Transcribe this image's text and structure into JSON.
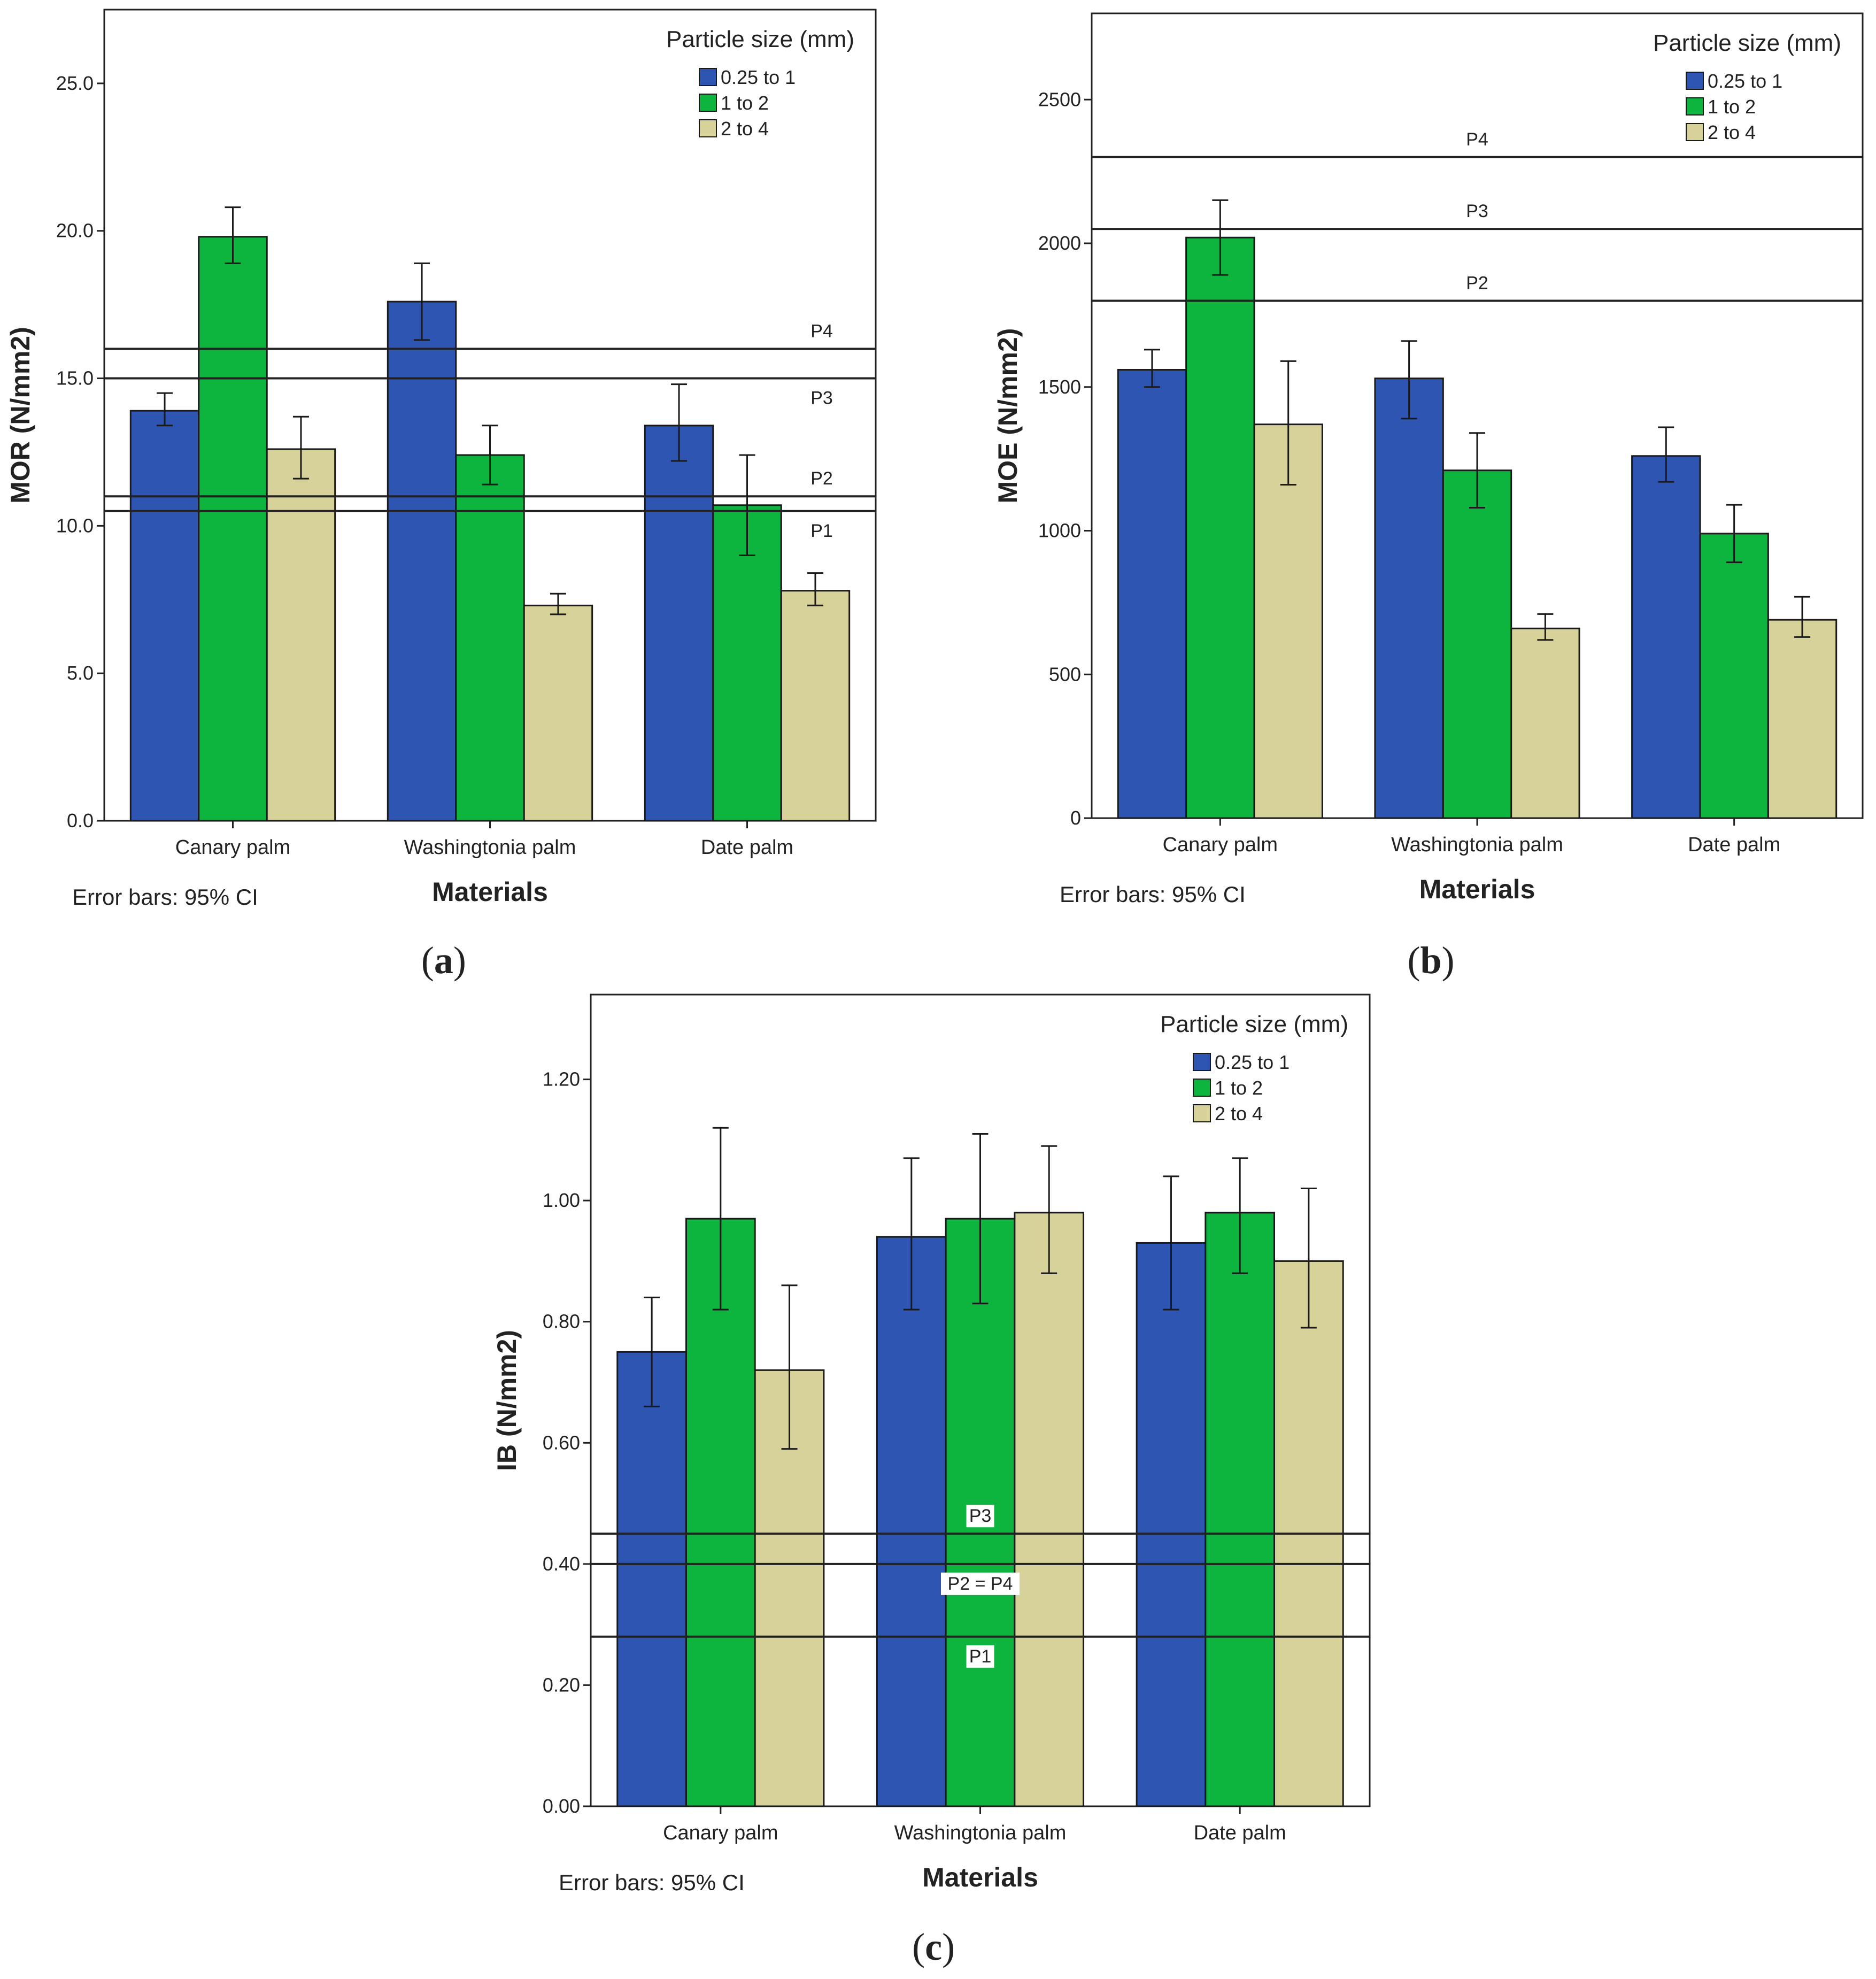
{
  "figure": {
    "error_note": "Error bars: 95% CI",
    "legend_title": "Particle size (mm)"
  },
  "chart_data": [
    {
      "panel": "(a)",
      "panel_letter": "a",
      "type": "bar",
      "ylabel": "MOR (N/mm2)",
      "xlabel": "Materials",
      "ylim": [
        0,
        27.5
      ],
      "yticks": [
        0,
        5,
        10,
        15,
        20,
        25
      ],
      "tick_decimals": 1,
      "categories": [
        "Canary palm",
        "Washingtonia palm",
        "Date palm"
      ],
      "series": [
        {
          "name": "0.25 to 1",
          "values": [
            13.9,
            17.6,
            13.4
          ],
          "ci_low": [
            13.4,
            16.3,
            12.2
          ],
          "ci_high": [
            14.5,
            18.9,
            14.8
          ]
        },
        {
          "name": "1 to 2",
          "values": [
            19.8,
            12.4,
            10.7
          ],
          "ci_low": [
            18.9,
            11.4,
            9.0
          ],
          "ci_high": [
            20.8,
            13.4,
            12.4
          ]
        },
        {
          "name": "2 to 4",
          "values": [
            12.6,
            7.3,
            7.8
          ],
          "ci_low": [
            11.6,
            7.0,
            7.3
          ],
          "ci_high": [
            13.7,
            7.7,
            8.4
          ]
        }
      ],
      "reference_lines": [
        {
          "label": "P4",
          "value": 16.0,
          "label_pos": "above"
        },
        {
          "label": "P3",
          "value": 15.0,
          "label_pos": "below"
        },
        {
          "label": "P2",
          "value": 11.0,
          "label_pos": "above"
        },
        {
          "label": "P1",
          "value": 10.5,
          "label_pos": "below"
        }
      ],
      "legend_position": "top-right"
    },
    {
      "panel": "(b)",
      "panel_letter": "b",
      "type": "bar",
      "ylabel": "MOE (N/mm2)",
      "xlabel": "Materials",
      "ylim": [
        0,
        2800
      ],
      "yticks": [
        0,
        500,
        1000,
        1500,
        2000,
        2500
      ],
      "tick_decimals": 0,
      "categories": [
        "Canary palm",
        "Washingtonia palm",
        "Date palm"
      ],
      "series": [
        {
          "name": "0.25 to 1",
          "values": [
            1560,
            1530,
            1260
          ],
          "ci_low": [
            1500,
            1390,
            1170
          ],
          "ci_high": [
            1630,
            1660,
            1360
          ]
        },
        {
          "name": "1 to 2",
          "values": [
            2020,
            1210,
            990
          ],
          "ci_low": [
            1890,
            1080,
            890
          ],
          "ci_high": [
            2150,
            1340,
            1090
          ]
        },
        {
          "name": "2 to 4",
          "values": [
            1370,
            660,
            690
          ],
          "ci_low": [
            1160,
            620,
            630
          ],
          "ci_high": [
            1590,
            710,
            770
          ]
        }
      ],
      "reference_lines": [
        {
          "label": "P4",
          "value": 2300,
          "label_pos": "above"
        },
        {
          "label": "P3",
          "value": 2050,
          "label_pos": "above"
        },
        {
          "label": "P2",
          "value": 1800,
          "label_pos": "above"
        }
      ],
      "legend_position": "top-right"
    },
    {
      "panel": "(c)",
      "panel_letter": "c",
      "type": "bar",
      "ylabel": "IB (N/mm2)",
      "xlabel": "Materials",
      "ylim": [
        0,
        1.34
      ],
      "yticks": [
        0,
        0.2,
        0.4,
        0.6,
        0.8,
        1.0,
        1.2
      ],
      "tick_decimals": 2,
      "categories": [
        "Canary palm",
        "Washingtonia palm",
        "Date palm"
      ],
      "series": [
        {
          "name": "0.25 to 1",
          "values": [
            0.75,
            0.94,
            0.93
          ],
          "ci_low": [
            0.66,
            0.82,
            0.82
          ],
          "ci_high": [
            0.84,
            1.07,
            1.04
          ]
        },
        {
          "name": "1 to 2",
          "values": [
            0.97,
            0.97,
            0.98
          ],
          "ci_low": [
            0.82,
            0.83,
            0.88
          ],
          "ci_high": [
            1.12,
            1.11,
            1.07
          ]
        },
        {
          "name": "2 to 4",
          "values": [
            0.72,
            0.98,
            0.9
          ],
          "ci_low": [
            0.59,
            0.88,
            0.79
          ],
          "ci_high": [
            0.86,
            1.09,
            1.02
          ]
        }
      ],
      "reference_lines": [
        {
          "label": "P3",
          "value": 0.45,
          "label_pos": "above"
        },
        {
          "label": "P2 = P4",
          "value": 0.4,
          "label_pos": "below"
        },
        {
          "label": "P1",
          "value": 0.28,
          "label_pos": "below"
        }
      ],
      "legend_position": "top-right"
    }
  ],
  "colors": {
    "series": [
      "#2e55b2",
      "#0db53f",
      "#d7d19a"
    ],
    "bar_stroke": "#1a1a1a",
    "axis": "#222222"
  }
}
